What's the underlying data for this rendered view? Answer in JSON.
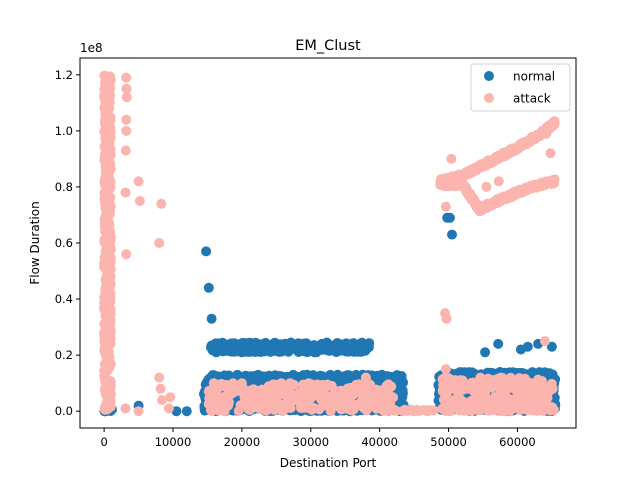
{
  "chart_data": {
    "type": "scatter",
    "title": "EM_Clust",
    "xlabel": "Destination Port",
    "ylabel": "Flow Duration",
    "y_offset_label": "1e8",
    "xlim": [
      -3500,
      68500
    ],
    "ylim": [
      -0.06,
      1.26
    ],
    "x_ticks": [
      0,
      10000,
      20000,
      30000,
      40000,
      50000,
      60000
    ],
    "x_tick_labels": [
      "0",
      "10000",
      "20000",
      "30000",
      "40000",
      "50000",
      "60000"
    ],
    "y_ticks": [
      0.0,
      0.2,
      0.4,
      0.6,
      0.8,
      1.0,
      1.2
    ],
    "y_tick_labels": [
      "0.0",
      "0.2",
      "0.4",
      "0.6",
      "0.8",
      "1.0",
      "1.2"
    ],
    "legend_position": "top-right",
    "grid": false,
    "series": [
      {
        "name": "normal",
        "color": "#1f77b4",
        "points": [
          [
            80,
            0.0
          ],
          [
            443,
            0.01
          ],
          [
            53,
            0.0
          ],
          [
            200,
            0.005
          ],
          [
            5000,
            0.02
          ],
          [
            10500,
            0.0
          ],
          [
            12000,
            0.0
          ],
          [
            14800,
            0.57
          ],
          [
            15200,
            0.44
          ],
          [
            15600,
            0.33
          ],
          [
            49800,
            0.69
          ],
          [
            50200,
            0.69
          ],
          [
            50500,
            0.63
          ],
          [
            55300,
            0.21
          ],
          [
            57200,
            0.24
          ],
          [
            60500,
            0.22
          ],
          [
            61500,
            0.23
          ],
          [
            63000,
            0.24
          ],
          [
            65000,
            0.23
          ]
        ],
        "regions": [
          {
            "x": [
              14500,
              43500
            ],
            "y": [
              0.0,
              0.13
            ]
          },
          {
            "x": [
              48500,
              65500
            ],
            "y": [
              0.0,
              0.14
            ]
          },
          {
            "x": [
              15500,
              38500
            ],
            "y": [
              0.21,
              0.245
            ]
          },
          {
            "x": [
              0,
              1200
            ],
            "y": [
              0.0,
              0.01
            ]
          }
        ]
      },
      {
        "name": "attack",
        "color": "#fbb4ae",
        "points": [
          [
            3200,
            1.19
          ],
          [
            3250,
            1.15
          ],
          [
            3300,
            1.12
          ],
          [
            3200,
            1.04
          ],
          [
            3200,
            1.0
          ],
          [
            3150,
            0.93
          ],
          [
            3100,
            0.78
          ],
          [
            5000,
            0.82
          ],
          [
            5200,
            0.75
          ],
          [
            8300,
            0.74
          ],
          [
            8000,
            0.6
          ],
          [
            3200,
            0.56
          ],
          [
            3100,
            0.01
          ],
          [
            5000,
            0.0
          ],
          [
            8000,
            0.12
          ],
          [
            8200,
            0.08
          ],
          [
            8400,
            0.04
          ],
          [
            9600,
            0.05
          ],
          [
            9400,
            0.01
          ],
          [
            15200,
            0.07
          ],
          [
            17500,
            0.0
          ],
          [
            18000,
            0.02
          ],
          [
            20000,
            0.1
          ],
          [
            26500,
            0.03
          ],
          [
            27000,
            0.1
          ],
          [
            35000,
            0.02
          ],
          [
            35500,
            0.07
          ],
          [
            38000,
            0.12
          ],
          [
            49500,
            0.35
          ],
          [
            49700,
            0.33
          ],
          [
            49600,
            0.15
          ],
          [
            49600,
            0.73
          ],
          [
            50400,
            0.9
          ],
          [
            55500,
            0.8
          ],
          [
            57300,
            0.82
          ],
          [
            64200,
            0.99
          ],
          [
            64800,
            0.92
          ],
          [
            64000,
            0.25
          ],
          [
            58000,
            0.0
          ],
          [
            53000,
            0.03
          ],
          [
            60000,
            0.06
          ],
          [
            62000,
            0.1
          ],
          [
            45000,
            0.0
          ],
          [
            47000,
            0.0
          ]
        ],
        "regions": [
          {
            "x": [
              0,
              1000
            ],
            "y": [
              0.0,
              1.2
            ]
          }
        ],
        "curves": [
          {
            "x": [
              48800,
              52000,
              56000,
              60000,
              64000,
              65400
            ],
            "y": [
              0.82,
              0.84,
              0.89,
              0.94,
              1.0,
              1.03
            ]
          },
          {
            "x": [
              48800,
              52000,
              54500,
              58000,
              62000,
              65400
            ],
            "y": [
              0.81,
              0.81,
              0.72,
              0.76,
              0.8,
              0.82
            ]
          }
        ],
        "bands": [
          {
            "x": [
              41000,
              48500
            ],
            "y": [
              0.0,
              0.005
            ]
          },
          {
            "x": [
              50000,
              65500
            ],
            "y": [
              0.0,
              0.02
            ]
          }
        ]
      }
    ]
  }
}
